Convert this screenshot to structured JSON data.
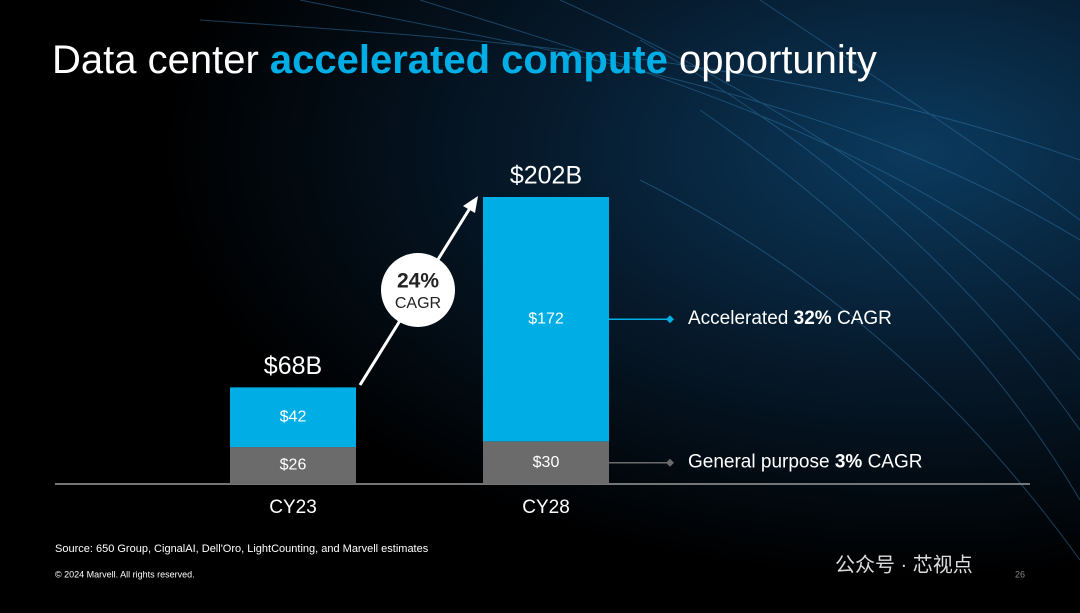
{
  "chart_data": {
    "type": "stacked_bar",
    "title": [
      "Data center ",
      "accelerated compute",
      " opportunity"
    ],
    "categories": [
      "CY23",
      "CY28"
    ],
    "series": [
      {
        "name": "General purpose",
        "cagr": "3%",
        "cagr_text": "CAGR",
        "color": "#6b6b6b",
        "values": [
          26,
          30
        ],
        "value_labels": [
          "$26",
          "$30"
        ]
      },
      {
        "name": "Accelerated",
        "cagr": "32%",
        "cagr_text": "CAGR",
        "color": "#00aee6",
        "values": [
          42,
          172
        ],
        "value_labels": [
          "$42",
          "$172"
        ]
      }
    ],
    "totals": {
      "values": [
        68,
        202
      ],
      "value_labels": [
        "$68B",
        "$202B"
      ]
    },
    "growth": {
      "value": "24%",
      "text": "CAGR"
    },
    "source": "Source: 650 Group, CignalAI, Dell'Oro, LightCounting, and Marvell estimates",
    "copyright": "© 2024 Marvell. All rights reserved.",
    "watermark": "公众号 · 芯视点",
    "page_number": "26"
  }
}
